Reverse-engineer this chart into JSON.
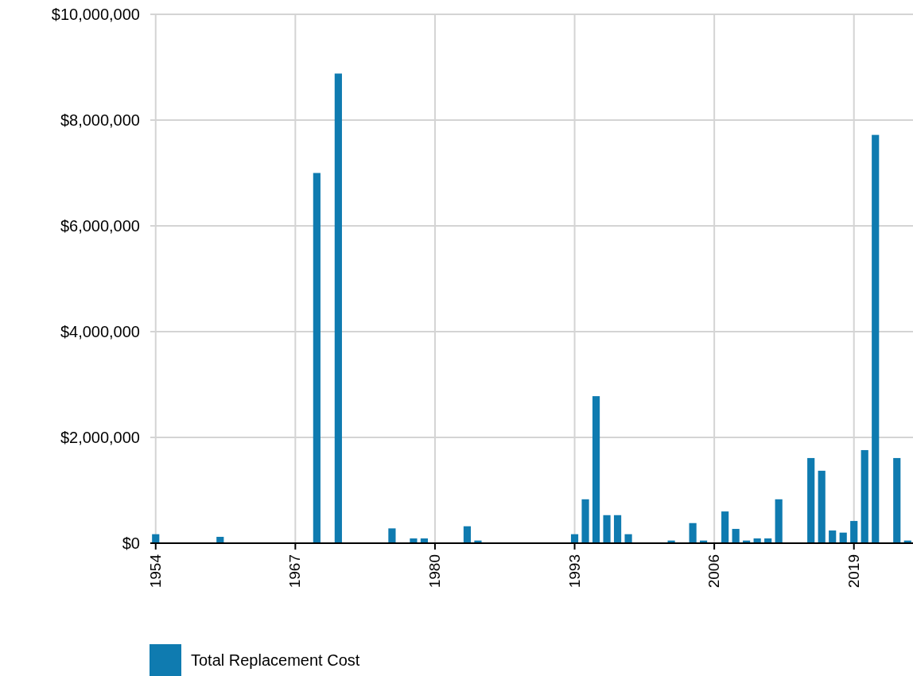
{
  "chart_data": {
    "type": "bar",
    "x": [
      1954,
      1960,
      1969,
      1971,
      1976,
      1978,
      1979,
      1983,
      1984,
      1993,
      1994,
      1995,
      1996,
      1997,
      1998,
      2002,
      2004,
      2005,
      2007,
      2008,
      2009,
      2010,
      2011,
      2012,
      2015,
      2016,
      2017,
      2018,
      2019,
      2020,
      2021,
      2023,
      2024
    ],
    "series": [
      {
        "name": "Total Replacement Cost",
        "color": "#0f7bb0",
        "values": [
          170000,
          120000,
          7000000,
          8880000,
          280000,
          90000,
          90000,
          320000,
          50000,
          170000,
          830000,
          2780000,
          530000,
          530000,
          170000,
          50000,
          380000,
          50000,
          600000,
          270000,
          50000,
          90000,
          90000,
          830000,
          1610000,
          1370000,
          240000,
          200000,
          420000,
          1760000,
          7720000,
          1610000,
          50000
        ]
      }
    ],
    "xlim": [
      1953.5,
      2024.5
    ],
    "xticks": [
      1954,
      1967,
      1980,
      1993,
      2006,
      2019
    ],
    "ylim": [
      0,
      10000000
    ],
    "yticks": [
      {
        "value": 0,
        "label": "$0"
      },
      {
        "value": 2000000,
        "label": "$2,000,000"
      },
      {
        "value": 4000000,
        "label": "$4,000,000"
      },
      {
        "value": 6000000,
        "label": "$6,000,000"
      },
      {
        "value": 8000000,
        "label": "$8,000,000"
      },
      {
        "value": 10000000,
        "label": "$10,000,000"
      }
    ],
    "grid": true,
    "legend": "bottom"
  }
}
